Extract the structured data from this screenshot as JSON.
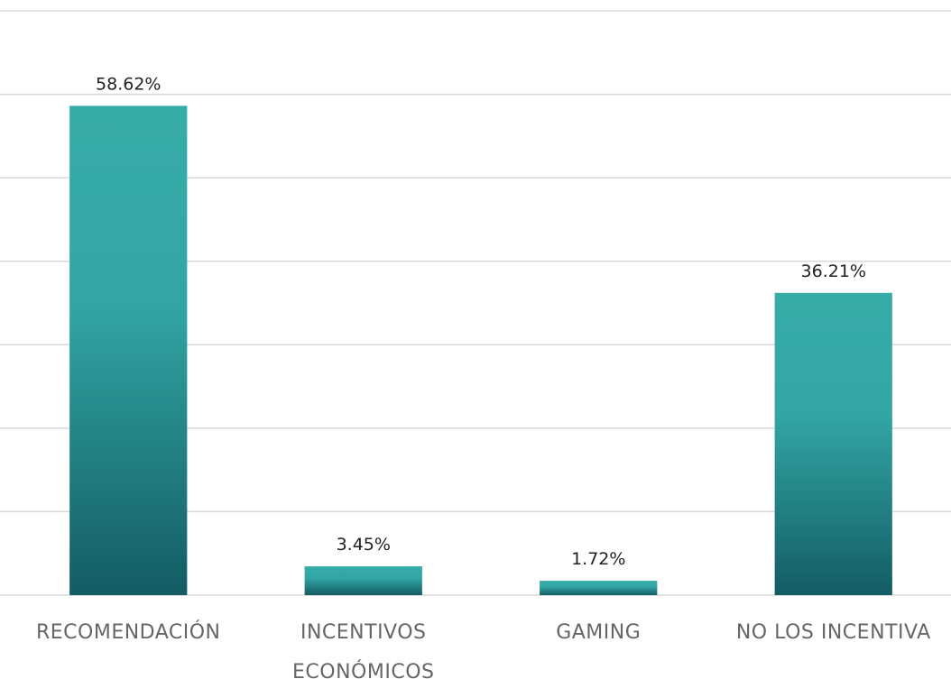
{
  "chart_data": {
    "type": "bar",
    "categories": [
      "RECOMENDACIÓN",
      "INCENTIVOS ECONÓMICOS",
      "GAMING",
      "NO LOS INCENTIVA"
    ],
    "values": [
      58.62,
      3.45,
      1.72,
      36.21
    ],
    "value_labels": [
      "58.62%",
      "3.45%",
      "1.72%",
      "36.21%"
    ],
    "color": "#33aaa8",
    "ylim": [
      0,
      70
    ],
    "yticks": [
      0,
      10,
      20,
      30,
      40,
      50,
      60,
      70
    ],
    "grid": true
  }
}
